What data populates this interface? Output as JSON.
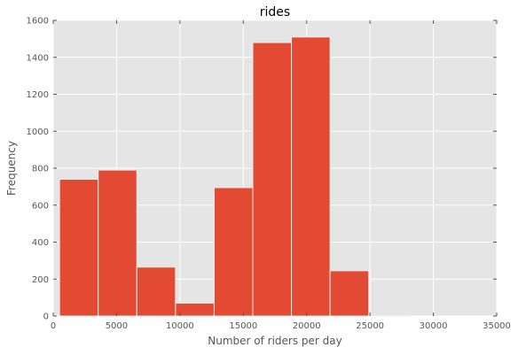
{
  "chart_data": {
    "type": "bar",
    "subtype": "histogram",
    "title": "rides",
    "xlabel": "Number of riders per day",
    "ylabel": "Frequency",
    "xlim": [
      0,
      35000
    ],
    "ylim": [
      0,
      1600
    ],
    "xticks": [
      0,
      5000,
      10000,
      15000,
      20000,
      25000,
      30000,
      35000
    ],
    "yticks": [
      0,
      200,
      400,
      600,
      800,
      1000,
      1200,
      1400,
      1600
    ],
    "bins": [
      {
        "x0": 500,
        "x1": 3550,
        "value": 740
      },
      {
        "x0": 3550,
        "x1": 6600,
        "value": 790
      },
      {
        "x0": 6600,
        "x1": 9650,
        "value": 265
      },
      {
        "x0": 9650,
        "x1": 12700,
        "value": 70
      },
      {
        "x0": 12700,
        "x1": 15750,
        "value": 695
      },
      {
        "x0": 15750,
        "x1": 18800,
        "value": 1480
      },
      {
        "x0": 18800,
        "x1": 21850,
        "value": 1510
      },
      {
        "x0": 21850,
        "x1": 24900,
        "value": 245
      },
      {
        "x0": 24900,
        "x1": 27950,
        "value": 3
      },
      {
        "x0": 27950,
        "x1": 31000,
        "value": 0
      }
    ],
    "grid": true,
    "legend": "none",
    "colors": {
      "bar": "#E24A33",
      "bar_edge": "#EEEEEE",
      "plot_background": "#E5E5E5",
      "grid": "#FFFFFF"
    }
  }
}
